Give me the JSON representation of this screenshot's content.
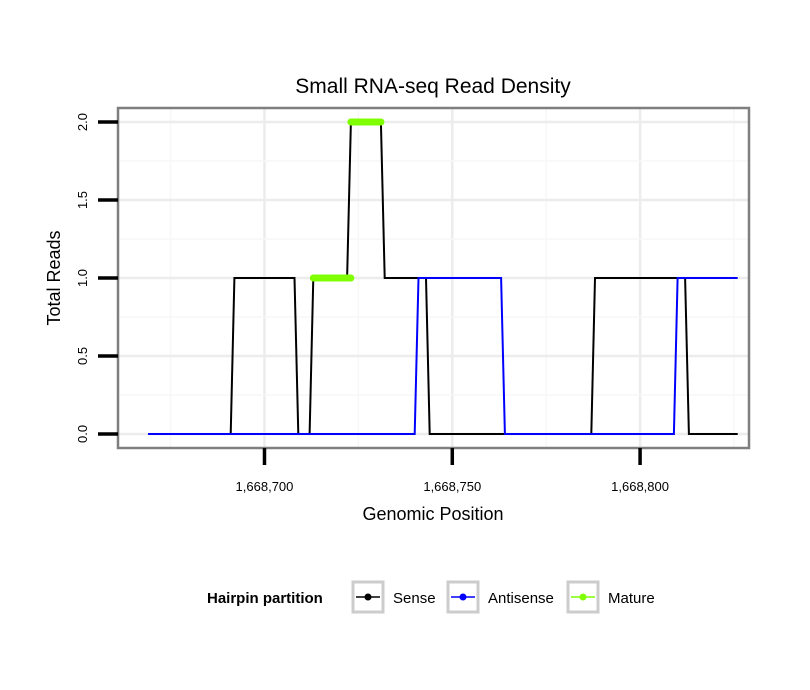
{
  "chart_data": {
    "type": "line",
    "title": "Small RNA-seq Read Density",
    "xlabel": "Genomic Position",
    "ylabel": "Total Reads",
    "xlim": [
      1668661,
      1668829
    ],
    "ylim": [
      -0.09,
      2.09
    ],
    "x_ticks": [
      1668700,
      1668750,
      1668800
    ],
    "x_tick_labels": [
      "1,668,700",
      "1,668,750",
      "1,668,800"
    ],
    "y_ticks": [
      0.0,
      0.5,
      1.0,
      1.5,
      2.0
    ],
    "y_tick_labels": [
      "0.0",
      "0.5",
      "1.0",
      "1.5",
      "2.0"
    ],
    "grid": true,
    "legend": {
      "title": "Hairpin partition",
      "position": "bottom",
      "entries": [
        {
          "label": "Sense",
          "color": "#000000"
        },
        {
          "label": "Antisense",
          "color": "#0000ff"
        },
        {
          "label": "Mature",
          "color": "#7fff00"
        }
      ]
    },
    "series": [
      {
        "name": "Sense",
        "color": "#000000",
        "x": [
          1668669,
          1668691,
          1668692,
          1668708,
          1668709,
          1668712,
          1668713,
          1668722,
          1668723,
          1668731,
          1668732,
          1668743,
          1668744,
          1668787,
          1668788,
          1668812,
          1668813,
          1668826
        ],
        "y": [
          0,
          0,
          1,
          1,
          0,
          0,
          1,
          1,
          2,
          2,
          1,
          1,
          0,
          0,
          1,
          1,
          0,
          0
        ]
      },
      {
        "name": "Antisense",
        "color": "#0000ff",
        "x": [
          1668669,
          1668740,
          1668741,
          1668763,
          1668764,
          1668809,
          1668810,
          1668826
        ],
        "y": [
          0,
          0,
          1,
          1,
          0,
          0,
          1,
          1
        ]
      },
      {
        "name": "Mature",
        "color": "#7fff00",
        "segments": [
          {
            "x": [
              1668713,
              1668723
            ],
            "y": 1
          },
          {
            "x": [
              1668723,
              1668731
            ],
            "y": 2
          }
        ]
      }
    ]
  }
}
